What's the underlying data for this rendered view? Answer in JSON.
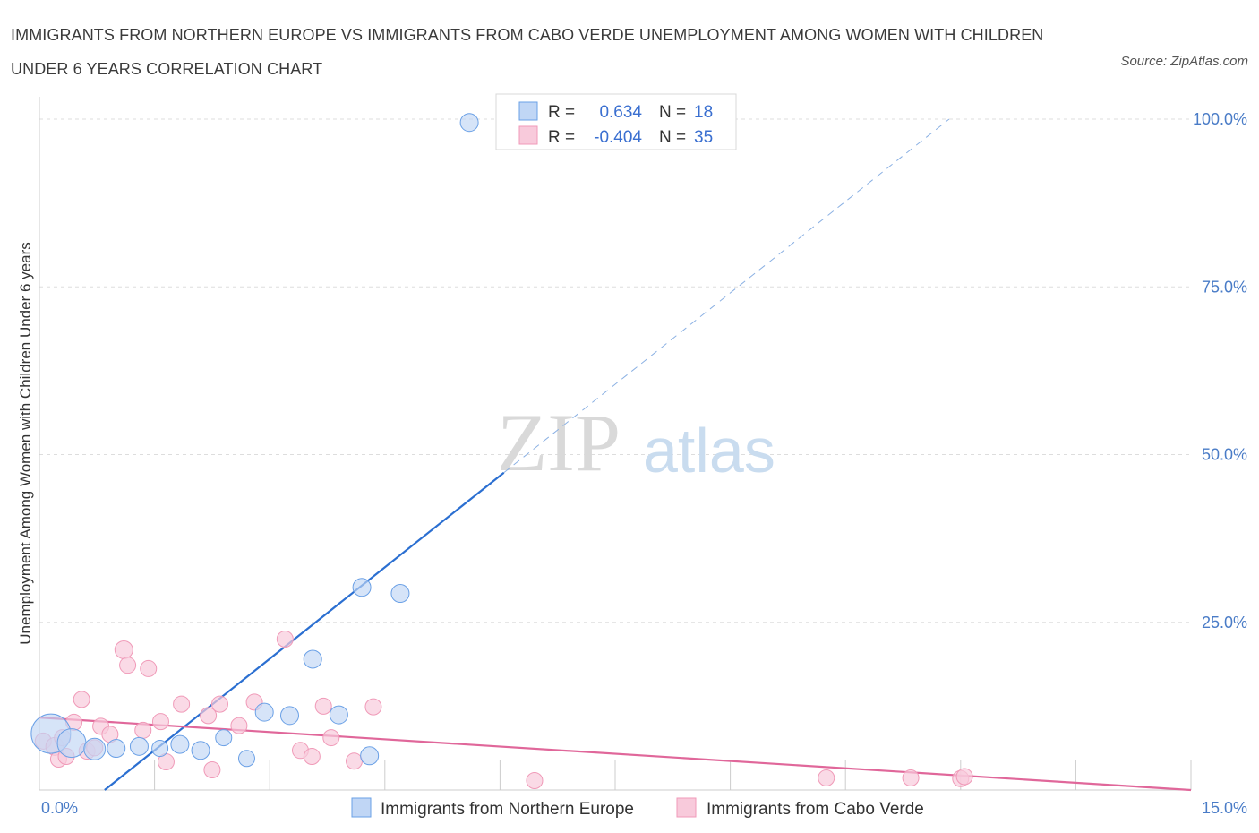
{
  "title": "IMMIGRANTS FROM NORTHERN EUROPE VS IMMIGRANTS FROM CABO VERDE UNEMPLOYMENT AMONG WOMEN WITH CHILDREN UNDER 6 YEARS CORRELATION CHART",
  "source": "Source: ZipAtlas.com",
  "watermark": {
    "zip": "ZIP",
    "atlas": "atlas"
  },
  "colors": {
    "blue": "#6aa0e6",
    "blue_fill": "#c0d6f5",
    "blue_line": "#2b6fd1",
    "pink": "#f09ab8",
    "pink_fill": "#f8cadb",
    "pink_line": "#e0679a",
    "tick": "#4a7cc7"
  },
  "chart_data": {
    "type": "scatter",
    "title": "IMMIGRANTS FROM NORTHERN EUROPE VS IMMIGRANTS FROM CABO VERDE UNEMPLOYMENT AMONG WOMEN WITH CHILDREN UNDER 6 YEARS CORRELATION CHART",
    "xlabel": "",
    "ylabel": "Unemployment Among Women with Children Under 6 years",
    "xlim": [
      0,
      15
    ],
    "ylim": [
      0,
      100
    ],
    "x_tick_labels": [
      "0.0%",
      "15.0%"
    ],
    "y_ticks": [
      25,
      50,
      75,
      100
    ],
    "y_tick_labels": [
      "25.0%",
      "50.0%",
      "75.0%",
      "100.0%"
    ],
    "grid": true,
    "legend": {
      "rows": [
        {
          "r_label": "R =",
          "r_value": "0.634",
          "n_label": "N =",
          "n_value": "18"
        },
        {
          "r_label": "R =",
          "r_value": "-0.404",
          "n_label": "N =",
          "n_value": "35"
        }
      ]
    },
    "series": [
      {
        "name": "Immigrants from Northern Europe",
        "r": 0.634,
        "n": 18,
        "points": [
          [
            0.15,
            8.4,
            22
          ],
          [
            0.42,
            7.0,
            16
          ],
          [
            0.72,
            6.1,
            12
          ],
          [
            1.0,
            6.2,
            10
          ],
          [
            1.3,
            6.5,
            10
          ],
          [
            1.57,
            6.2,
            9
          ],
          [
            1.83,
            6.8,
            10
          ],
          [
            2.1,
            5.9,
            10
          ],
          [
            2.4,
            7.8,
            9
          ],
          [
            2.7,
            4.7,
            9
          ],
          [
            2.93,
            11.6,
            10
          ],
          [
            3.26,
            11.1,
            10
          ],
          [
            3.56,
            19.5,
            10
          ],
          [
            3.9,
            11.2,
            10
          ],
          [
            4.2,
            30.2,
            10
          ],
          [
            4.3,
            5.1,
            10
          ],
          [
            4.7,
            29.3,
            10
          ],
          [
            5.6,
            99.5,
            10
          ]
        ],
        "trend_solid": [
          [
            0.85,
            0
          ],
          [
            6.05,
            47.3
          ]
        ],
        "trend_dashed": [
          [
            6.05,
            47.3
          ],
          [
            11.85,
            100.0
          ]
        ]
      },
      {
        "name": "Immigrants from Cabo Verde",
        "r": -0.404,
        "n": 35,
        "points": [
          [
            0.05,
            7.3,
            9
          ],
          [
            0.2,
            6.5,
            10
          ],
          [
            0.25,
            4.6,
            9
          ],
          [
            0.3,
            7.8,
            9
          ],
          [
            0.35,
            5.0,
            9
          ],
          [
            0.45,
            10.1,
            9
          ],
          [
            0.55,
            13.5,
            9
          ],
          [
            0.62,
            5.8,
            9
          ],
          [
            0.72,
            6.3,
            9
          ],
          [
            0.8,
            9.5,
            9
          ],
          [
            0.92,
            8.3,
            9
          ],
          [
            1.1,
            20.9,
            10
          ],
          [
            1.15,
            18.6,
            9
          ],
          [
            1.35,
            8.9,
            9
          ],
          [
            1.42,
            18.1,
            9
          ],
          [
            1.58,
            10.2,
            9
          ],
          [
            1.65,
            4.2,
            9
          ],
          [
            1.85,
            12.8,
            9
          ],
          [
            2.2,
            11.1,
            9
          ],
          [
            2.25,
            3.0,
            9
          ],
          [
            2.35,
            12.8,
            9
          ],
          [
            2.6,
            9.6,
            9
          ],
          [
            2.8,
            13.1,
            9
          ],
          [
            3.2,
            22.5,
            9
          ],
          [
            3.4,
            5.9,
            9
          ],
          [
            3.55,
            5.0,
            9
          ],
          [
            3.7,
            12.5,
            9
          ],
          [
            3.8,
            7.8,
            9
          ],
          [
            4.1,
            4.3,
            9
          ],
          [
            4.35,
            12.4,
            9
          ],
          [
            6.45,
            1.4,
            9
          ],
          [
            10.25,
            1.8,
            9
          ],
          [
            11.35,
            1.8,
            9
          ],
          [
            12.0,
            1.7,
            9
          ],
          [
            12.05,
            2.0,
            9
          ]
        ],
        "trend": [
          [
            0,
            10.8
          ],
          [
            15,
            0
          ]
        ]
      }
    ],
    "bottom_legend": [
      "Immigrants from Northern Europe",
      "Immigrants from Cabo Verde"
    ]
  }
}
